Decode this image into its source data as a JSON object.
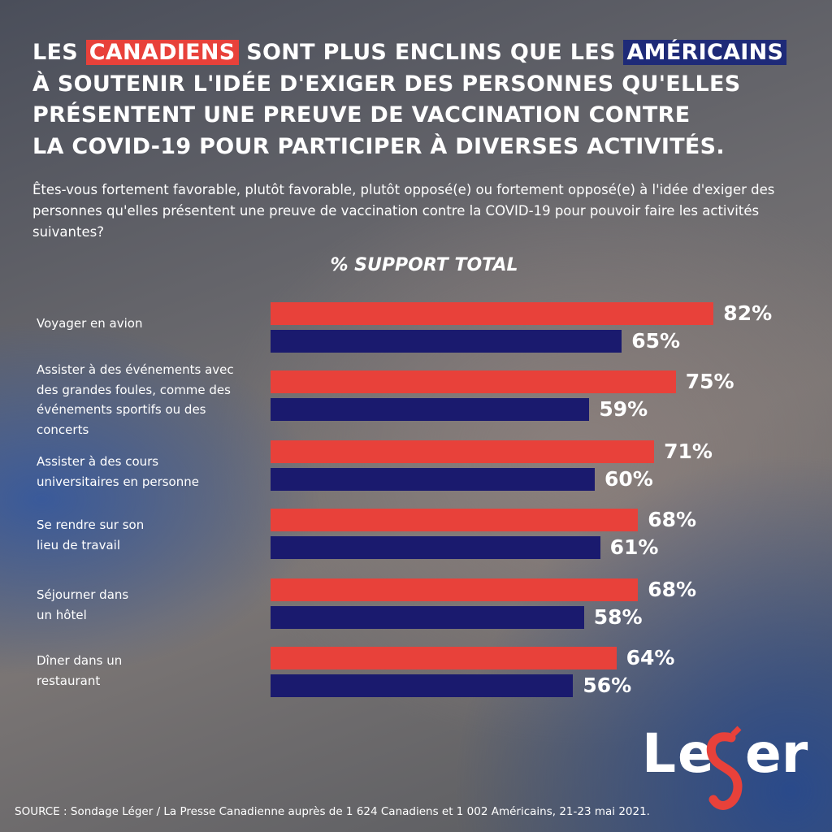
{
  "title": {
    "pre": "LES ",
    "canadiens": "CANADIENS",
    "mid": " SONT PLUS ENCLINS QUE LES ",
    "americains": "AMÉRICAINS",
    "line2": "À SOUTENIR L'IDÉE D'EXIGER DES PERSONNES QU'ELLES",
    "line3": "PRÉSENTENT UNE PREUVE DE VACCINATION CONTRE",
    "line4": "LA COVID-19 POUR PARTICIPER À DIVERSES ACTIVITÉS."
  },
  "subtitle": "Êtes-vous fortement favorable, plutôt favorable, plutôt opposé(e) ou fortement opposé(e) à l'idée d'exiger des personnes qu'elles présentent une preuve de vaccination contre la COVID-19 pour pouvoir faire les activités suivantes?",
  "chart_data": {
    "type": "bar",
    "orientation": "horizontal",
    "title": "% SUPPORT TOTAL",
    "categories": [
      "Voyager en avion",
      "Assister à des événements avec des grandes foules, comme des événements sportifs ou des concerts",
      "Assister à des cours universitaires en personne",
      "Se rendre sur son lieu de travail",
      "Séjourner dans un hôtel",
      "Dîner dans un restaurant"
    ],
    "series": [
      {
        "name": "CANADIENS",
        "color": "#e8413a",
        "values": [
          82,
          75,
          71,
          68,
          68,
          64
        ]
      },
      {
        "name": "AMÉRICAINS",
        "color": "#1a1a6e",
        "values": [
          65,
          59,
          60,
          61,
          58,
          56
        ]
      }
    ],
    "value_labels": [
      [
        "82%",
        "75%",
        "71%",
        "68%",
        "68%",
        "64%"
      ],
      [
        "65%",
        "59%",
        "60%",
        "61%",
        "58%",
        "56%"
      ]
    ],
    "xlim": [
      0,
      100
    ],
    "grid": false
  },
  "source": "SOURCE : Sondage Léger / La Presse Canadienne auprès de 1 624 Canadiens et 1 002 Américains, 21-23 mai 2021.",
  "logo": {
    "text": "Léger",
    "accent": "#e8413a"
  }
}
